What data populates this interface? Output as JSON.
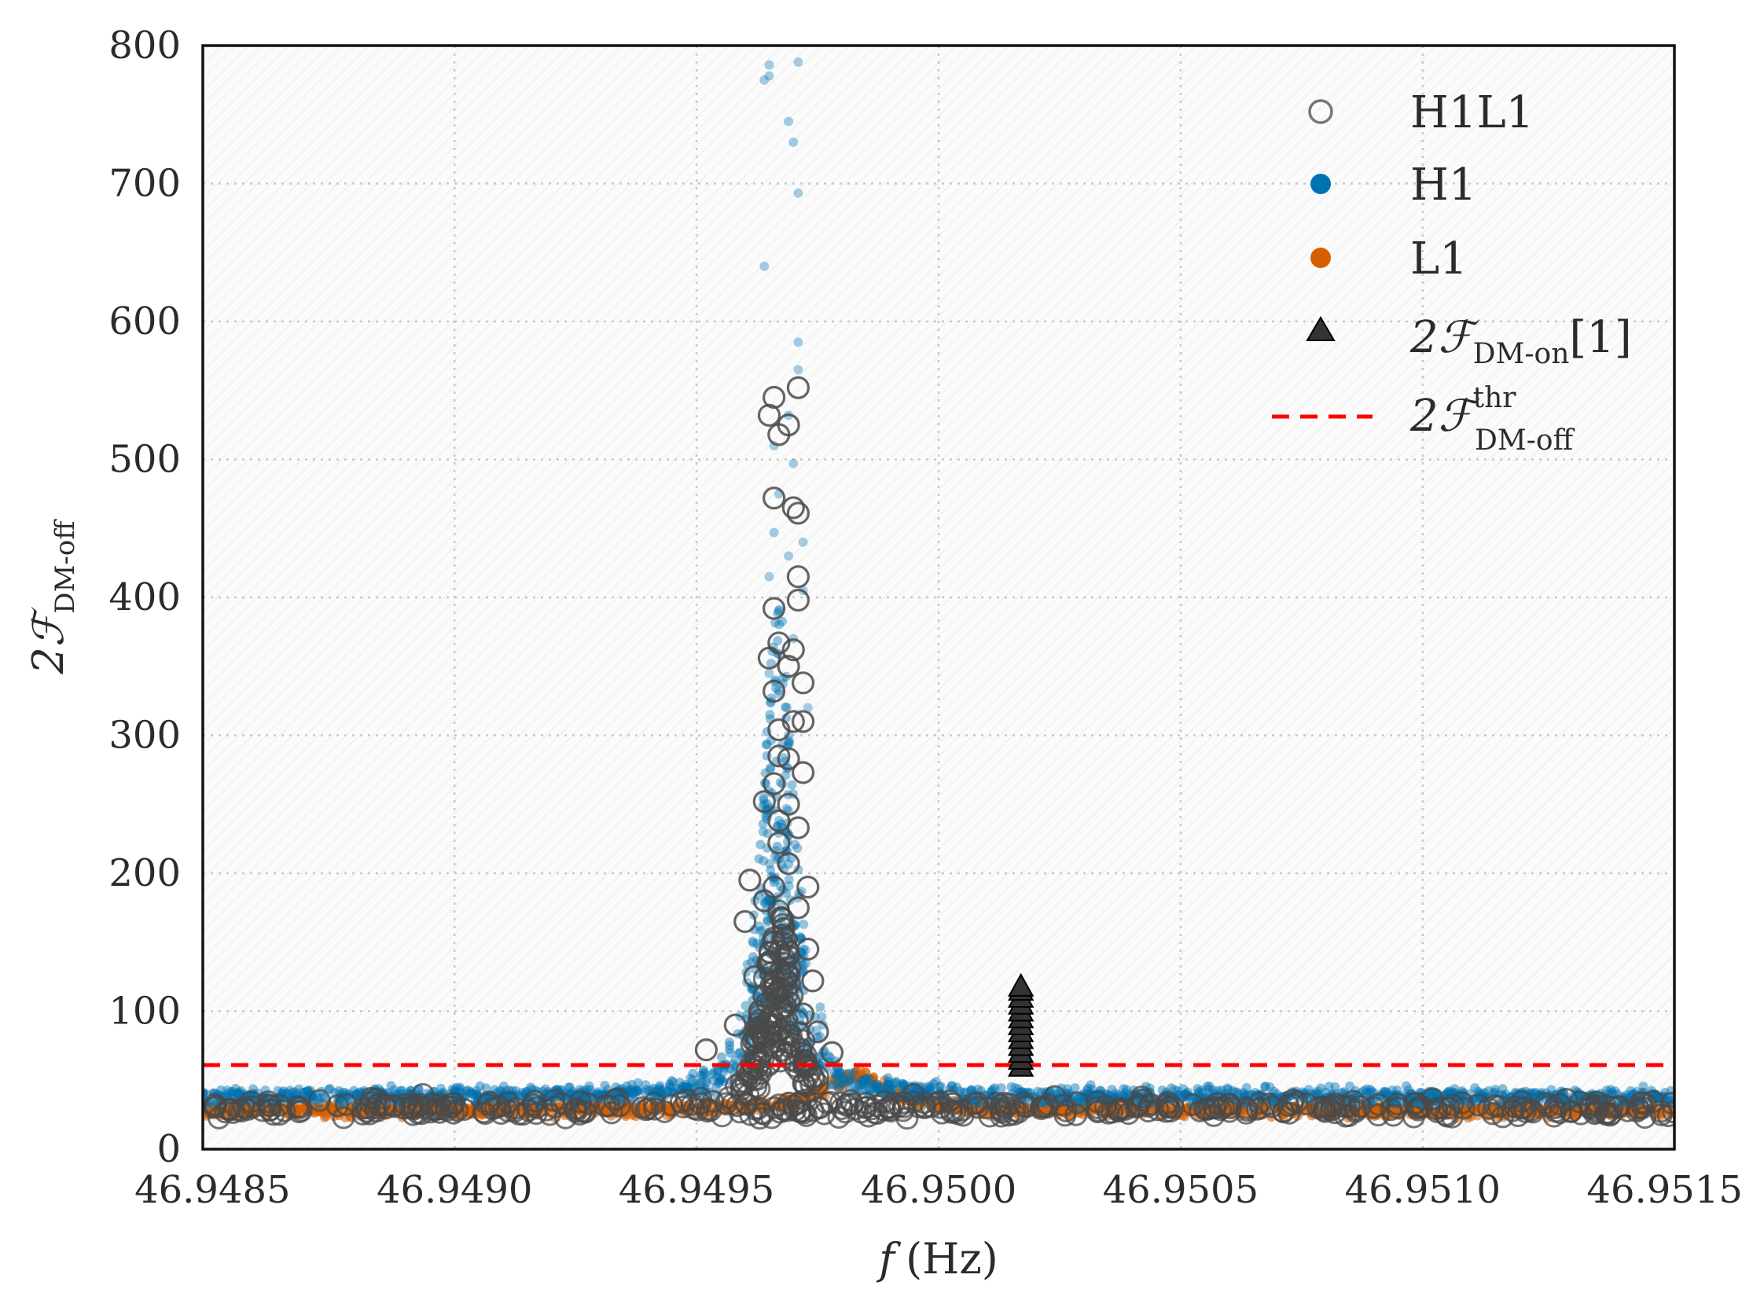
{
  "chart_data": {
    "type": "scatter",
    "xlabel": "f (Hz)",
    "ylabel": "2ℱDM-off",
    "xlim": [
      46.94848,
      46.95152
    ],
    "ylim": [
      0,
      800
    ],
    "x_ticks": [
      "46.9485",
      "46.9490",
      "46.9495",
      "46.9500",
      "46.9505",
      "46.9510",
      "46.9515"
    ],
    "x_tick_values": [
      46.9485,
      46.949,
      46.9495,
      46.95,
      46.9505,
      46.951,
      46.9515
    ],
    "y_ticks": [
      "0",
      "100",
      "200",
      "300",
      "400",
      "500",
      "600",
      "700",
      "800"
    ],
    "y_tick_values": [
      0,
      100,
      200,
      300,
      400,
      500,
      600,
      700,
      800
    ],
    "grid": true,
    "legend_position": "top-right",
    "peak_frequency": 46.94967,
    "series": [
      {
        "name": "H1L1",
        "marker": "open-circle",
        "color": "#4a4a4a",
        "baseline": 30,
        "peak_points": [
          [
            46.94966,
            545
          ],
          [
            46.94971,
            552
          ],
          [
            46.94965,
            532
          ],
          [
            46.94969,
            525
          ],
          [
            46.94967,
            518
          ],
          [
            46.94966,
            472
          ],
          [
            46.9497,
            465
          ],
          [
            46.94971,
            461
          ],
          [
            46.94971,
            415
          ],
          [
            46.94971,
            398
          ],
          [
            46.94966,
            392
          ],
          [
            46.94967,
            367
          ],
          [
            46.9497,
            362
          ],
          [
            46.94965,
            356
          ],
          [
            46.94969,
            350
          ],
          [
            46.94972,
            338
          ],
          [
            46.94966,
            332
          ],
          [
            46.9497,
            310
          ],
          [
            46.94972,
            310
          ],
          [
            46.94967,
            304
          ],
          [
            46.94967,
            285
          ],
          [
            46.94969,
            283
          ],
          [
            46.94972,
            273
          ],
          [
            46.94966,
            265
          ],
          [
            46.94964,
            252
          ],
          [
            46.94969,
            250
          ],
          [
            46.94967,
            238
          ],
          [
            46.94971,
            233
          ],
          [
            46.94967,
            222
          ],
          [
            46.94969,
            207
          ],
          [
            46.94961,
            195
          ],
          [
            46.94966,
            190
          ],
          [
            46.94973,
            190
          ],
          [
            46.94964,
            180
          ],
          [
            46.94971,
            175
          ],
          [
            46.94968,
            160
          ],
          [
            46.9496,
            165
          ],
          [
            46.94966,
            150
          ],
          [
            46.94973,
            145
          ],
          [
            46.94969,
            140
          ],
          [
            46.94962,
            125
          ],
          [
            46.94974,
            122
          ],
          [
            46.94967,
            110
          ],
          [
            46.94963,
            100
          ],
          [
            46.94972,
            98
          ],
          [
            46.94958,
            90
          ],
          [
            46.94975,
            85
          ],
          [
            46.94952,
            72
          ],
          [
            46.94978,
            70
          ]
        ]
      },
      {
        "name": "H1",
        "marker": "filled-circle",
        "color": "#0072b2",
        "baseline": 38,
        "peak_points": [
          [
            46.94965,
            786
          ],
          [
            46.94971,
            788
          ],
          [
            46.94965,
            778
          ],
          [
            46.94964,
            775
          ],
          [
            46.94969,
            745
          ],
          [
            46.9497,
            730
          ],
          [
            46.94971,
            693
          ],
          [
            46.94964,
            640
          ],
          [
            46.94971,
            585
          ],
          [
            46.94971,
            565
          ],
          [
            46.94969,
            532
          ],
          [
            46.94966,
            510
          ],
          [
            46.9497,
            497
          ],
          [
            46.94967,
            475
          ],
          [
            46.94966,
            447
          ],
          [
            46.94972,
            440
          ],
          [
            46.94969,
            430
          ],
          [
            46.94965,
            415
          ],
          [
            46.94972,
            405
          ],
          [
            46.94967,
            390
          ],
          [
            46.9497,
            370
          ],
          [
            46.94965,
            345
          ],
          [
            46.94967,
            330
          ],
          [
            46.94973,
            320
          ],
          [
            46.94969,
            300
          ]
        ]
      },
      {
        "name": "L1",
        "marker": "filled-circle",
        "color": "#d55e00",
        "baseline": 28,
        "bump_frequency": 46.94983,
        "bump_height": 55
      },
      {
        "name": "2ℱDM-on[1]",
        "marker": "triangle",
        "color": "#333333",
        "x": 46.95017,
        "y_values": [
          60,
          65,
          70,
          75,
          80,
          85,
          90,
          95,
          100,
          105,
          110,
          115,
          118
        ]
      }
    ],
    "threshold": {
      "name": "2ℱDM-off thr",
      "value": 61,
      "color": "#ff0000",
      "style": "dashed"
    }
  },
  "legend": {
    "h1l1": "H1L1",
    "h1": "H1",
    "l1": "L1",
    "dm_on_main": "2ℱ",
    "dm_on_sub": "DM-on",
    "dm_on_tail": "[1]",
    "thr_main": "2ℱ",
    "thr_sup": "thr",
    "thr_sub": "DM-off"
  },
  "axes": {
    "ylabel_main": "2ℱ",
    "ylabel_sub": "DM-off",
    "xlabel_f": "f",
    "xlabel_unit": "(Hz)"
  }
}
